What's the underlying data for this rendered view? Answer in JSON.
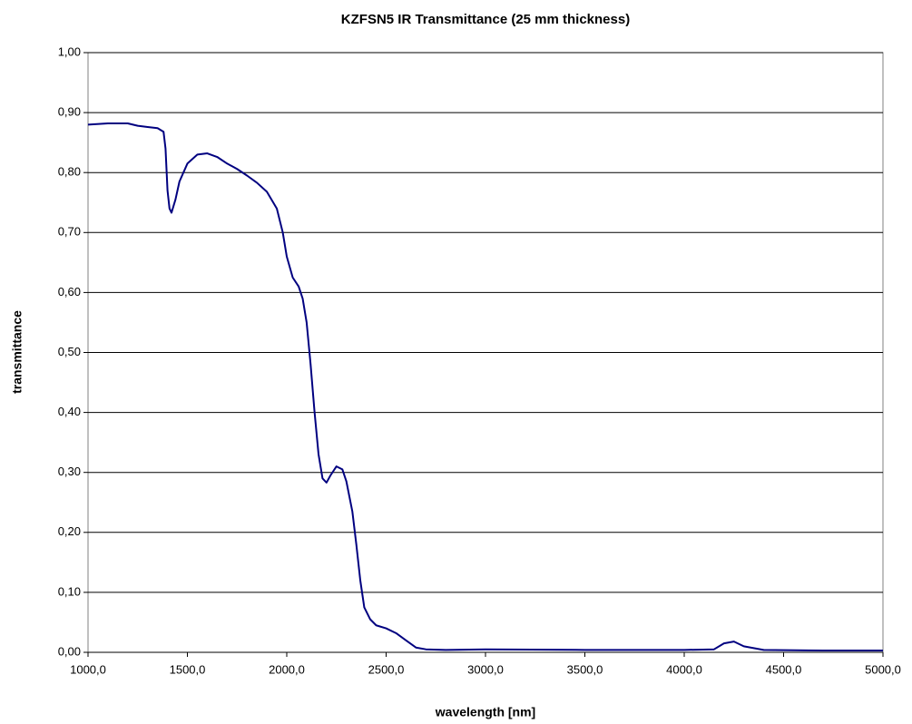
{
  "chart_data": {
    "type": "line",
    "title": "KZFSN5 IR Transmittance (25 mm thickness)",
    "x_label": "wavelength [nm]",
    "y_label": "transmittance",
    "xlim": [
      1000,
      5000
    ],
    "ylim": [
      0,
      1
    ],
    "xticks": [
      {
        "value": 1000,
        "label": "1000,0"
      },
      {
        "value": 1500,
        "label": "1500,0"
      },
      {
        "value": 2000,
        "label": "2000,0"
      },
      {
        "value": 2500,
        "label": "2500,0"
      },
      {
        "value": 3000,
        "label": "3000,0"
      },
      {
        "value": 3500,
        "label": "3500,0"
      },
      {
        "value": 4000,
        "label": "4000,0"
      },
      {
        "value": 4500,
        "label": "4500,0"
      },
      {
        "value": 5000,
        "label": "5000,0"
      }
    ],
    "yticks": [
      {
        "value": 0,
        "label": "0,00"
      },
      {
        "value": 0.1,
        "label": "0,10"
      },
      {
        "value": 0.2,
        "label": "0,20"
      },
      {
        "value": 0.3,
        "label": "0,30"
      },
      {
        "value": 0.4,
        "label": "0,40"
      },
      {
        "value": 0.5,
        "label": "0,50"
      },
      {
        "value": 0.6,
        "label": "0,60"
      },
      {
        "value": 0.7,
        "label": "0,70"
      },
      {
        "value": 0.8,
        "label": "0,80"
      },
      {
        "value": 0.9,
        "label": "0,90"
      },
      {
        "value": 1,
        "label": "1,00"
      }
    ],
    "grid": true,
    "x": [
      1000,
      1100,
      1200,
      1250,
      1300,
      1350,
      1380,
      1390,
      1400,
      1410,
      1420,
      1440,
      1460,
      1500,
      1550,
      1600,
      1650,
      1700,
      1750,
      1800,
      1850,
      1900,
      1950,
      1980,
      2000,
      2030,
      2060,
      2080,
      2100,
      2120,
      2140,
      2160,
      2180,
      2200,
      2220,
      2250,
      2280,
      2300,
      2330,
      2350,
      2370,
      2390,
      2420,
      2450,
      2500,
      2550,
      2600,
      2650,
      2700,
      2800,
      3000,
      3500,
      4000,
      4150,
      4200,
      4250,
      4300,
      4400,
      4700,
      5000
    ],
    "series": [
      {
        "color": "#000080",
        "values": [
          0.88,
          0.882,
          0.882,
          0.878,
          0.876,
          0.874,
          0.868,
          0.84,
          0.77,
          0.74,
          0.733,
          0.755,
          0.785,
          0.815,
          0.83,
          0.832,
          0.826,
          0.815,
          0.806,
          0.795,
          0.783,
          0.768,
          0.74,
          0.7,
          0.66,
          0.625,
          0.61,
          0.59,
          0.55,
          0.48,
          0.4,
          0.33,
          0.29,
          0.283,
          0.295,
          0.31,
          0.305,
          0.285,
          0.235,
          0.18,
          0.12,
          0.075,
          0.055,
          0.045,
          0.04,
          0.032,
          0.02,
          0.008,
          0.005,
          0.004,
          0.005,
          0.004,
          0.004,
          0.005,
          0.015,
          0.018,
          0.01,
          0.004,
          0.003,
          0.003
        ]
      }
    ]
  }
}
